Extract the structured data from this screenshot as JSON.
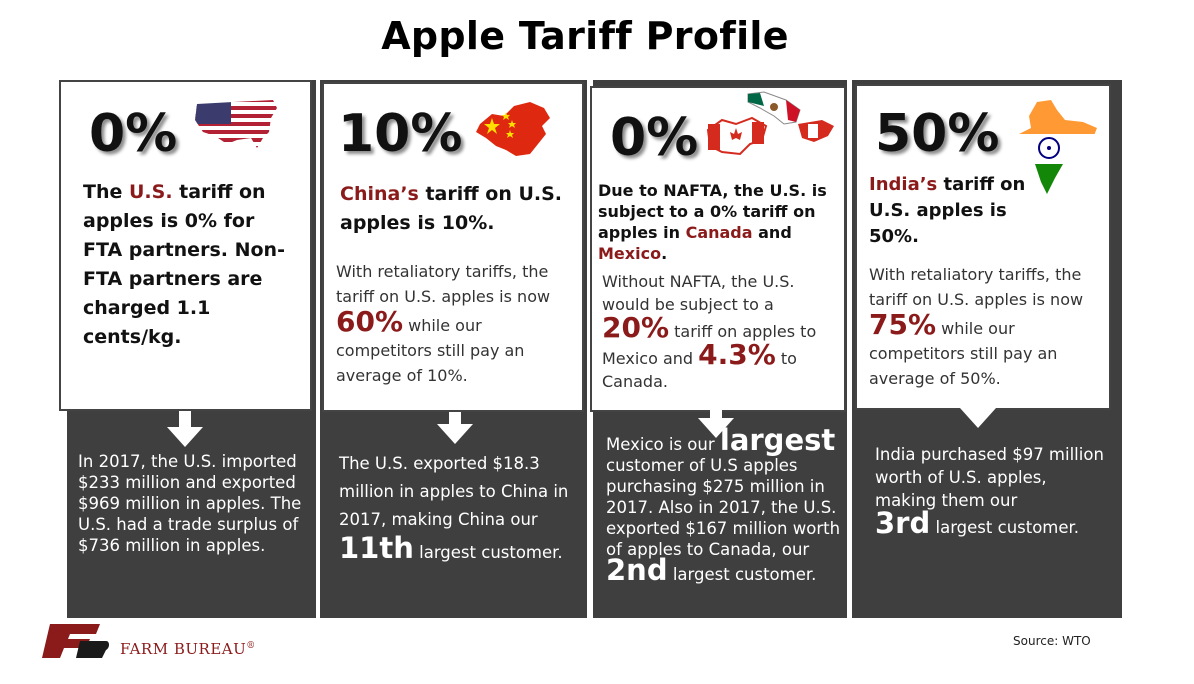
{
  "title": "Apple Tariff Profile",
  "colors": {
    "column_bg": "#3f3f3f",
    "accent_red": "#8b1a1a"
  },
  "cards": [
    {
      "percent": "0%",
      "flag_icon": "usa-flag-map-icon",
      "head_pre": "The ",
      "head_red": "U.S.",
      "head_post": " tariff on apples is 0% for FTA partners. Non-FTA partners are charged 1.1 cents/kg.",
      "dark_text": "In 2017, the U.S. imported $233 million and exported  $969 million in apples. The U.S. had a trade surplus of $736 million in apples."
    },
    {
      "percent": "10%",
      "flag_icon": "china-flag-map-icon",
      "head_red": "China’s",
      "head_post": " tariff on U.S. apples is 10%.",
      "body_pre": "With retaliatory tariffs, the tariff on U.S. apples is now",
      "body_big": "60%",
      "body_post": " while our competitors still pay an average of 10%.",
      "dark_pre": "The U.S. exported $18.3 million in apples to China in 2017, making China our",
      "dark_big": "11th",
      "dark_post": " largest customer."
    },
    {
      "percent": "0%",
      "flag_icon": "canada-mexico-flag-map-icon",
      "head_1": "Due to NAFTA, the U.S. is subject to a 0% tariff on apples in ",
      "head_red1": "Canada",
      "head_2": " and ",
      "head_red2": "Mexico",
      "head_3": ".",
      "body_pre": "Without NAFTA, the U.S. would be subject to a",
      "body_big1": "20%",
      "body_mid": " tariff on apples to Mexico and ",
      "body_big2": "4.3%",
      "body_post": " to Canada.",
      "dark_pre": "Mexico is our ",
      "dark_big1": "largest",
      "dark_mid": " customer of U.S apples purchasing $275 million in 2017. Also in 2017, the U.S. exported $167 million worth of apples to Canada, our",
      "dark_big2": "2nd",
      "dark_post": " largest customer."
    },
    {
      "percent": "50%",
      "flag_icon": "india-flag-map-icon",
      "head_red": "India’s",
      "head_post": " tariff on U.S. apples is 50%.",
      "body_pre": "With retaliatory tariffs, the tariff on U.S. apples is now",
      "body_big": "75%",
      "body_post": " while our competitors still pay an average of 50%.",
      "dark_pre": "India purchased $97 million worth of U.S. apples, making them our",
      "dark_big": "3rd",
      "dark_post": " largest customer."
    }
  ],
  "logo_text": "FARM BUREAU",
  "logo_mark": "®",
  "source": "Source: WTO"
}
